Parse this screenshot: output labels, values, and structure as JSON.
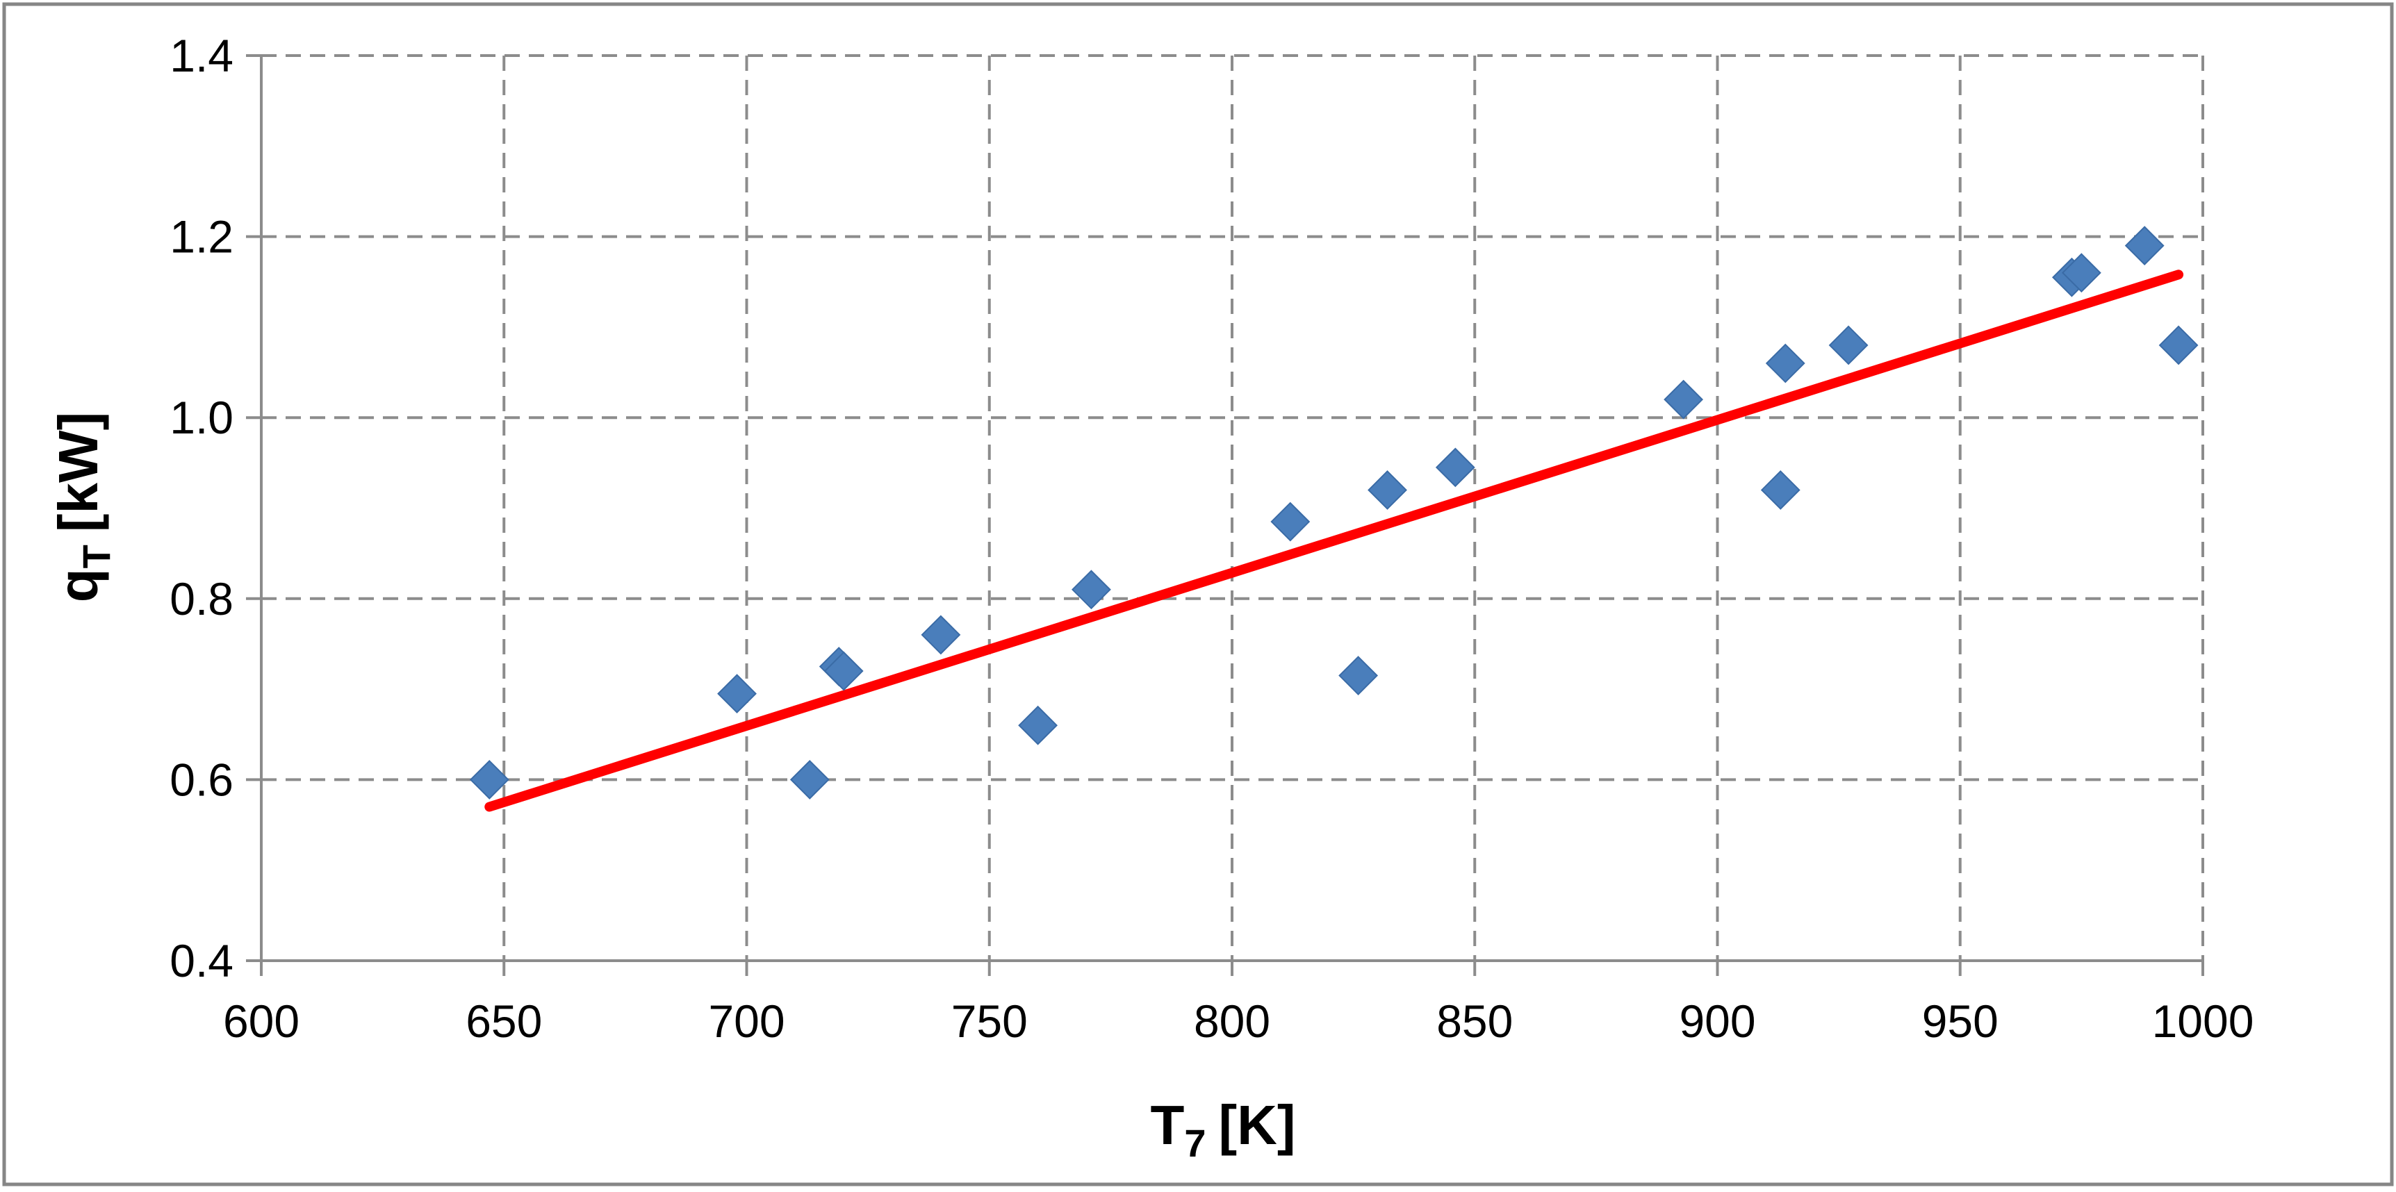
{
  "chart_data": {
    "type": "scatter",
    "title": "",
    "xlabel": {
      "main": "T",
      "sub": "7",
      "unit": "[K]"
    },
    "ylabel": {
      "main": "q",
      "sub": "T",
      "unit": "[kW]"
    },
    "xlim": [
      600,
      1000
    ],
    "ylim": [
      0.4,
      1.4
    ],
    "xticks": [
      "600",
      "650",
      "700",
      "750",
      "800",
      "850",
      "900",
      "950",
      "1000"
    ],
    "yticks": [
      "0.4",
      "0.6",
      "0.8",
      "1.0",
      "1.2",
      "1.4"
    ],
    "grid": true,
    "legend": "none",
    "series": [
      {
        "marker": "diamond",
        "color": "#4a7ebb",
        "points": [
          [
            647,
            0.6
          ],
          [
            698,
            0.695
          ],
          [
            713,
            0.6
          ],
          [
            719,
            0.725
          ],
          [
            720,
            0.72
          ],
          [
            740,
            0.76
          ],
          [
            760,
            0.66
          ],
          [
            771,
            0.81
          ],
          [
            812,
            0.885
          ],
          [
            826,
            0.715
          ],
          [
            832,
            0.92
          ],
          [
            846,
            0.945
          ],
          [
            893,
            1.02
          ],
          [
            913,
            0.92
          ],
          [
            914,
            1.06
          ],
          [
            927,
            1.08
          ],
          [
            973,
            1.155
          ],
          [
            975,
            1.16
          ],
          [
            988,
            1.19
          ],
          [
            995,
            1.08
          ]
        ]
      }
    ],
    "trendline": {
      "type": "linear",
      "color": "#ff0000",
      "x": [
        647,
        995
      ],
      "y": [
        0.57,
        1.158
      ]
    }
  }
}
